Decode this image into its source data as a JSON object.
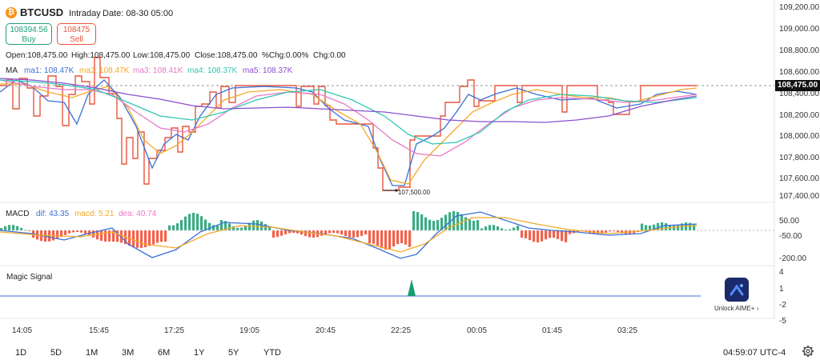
{
  "header": {
    "symbol": "BTCUSD",
    "interval": "Intraday",
    "date": "Date: 08-30 05:00",
    "buy_price": "108394.56",
    "buy_label": "Buy",
    "sell_price": "108475",
    "sell_label": "Sell"
  },
  "ohlc": {
    "open": "Open:108,475.00",
    "high": "High:108,475.00",
    "low": "Low:108,475.00",
    "close": "Close:108,475.00",
    "pct_chg": "%Chg:0.00%",
    "chg": "Chg:0.00"
  },
  "ma": {
    "label": "MA",
    "ma1": "ma1: 108.47K",
    "ma2": "ma2: 108.47K",
    "ma3": "ma3: 108.41K",
    "ma4": "ma4: 108.37K",
    "ma5": "ma5: 108.37K",
    "colors": {
      "ma1": "#3b6fd8",
      "ma2": "#f4a92a",
      "ma3": "#e879c6",
      "ma4": "#2fc7b4",
      "ma5": "#8b4fd0",
      "price": "#e8553e"
    }
  },
  "macd": {
    "label": "MACD",
    "dif": "dif: 43.35",
    "macd": "macd: 5.21",
    "dea": "dea: 40.74",
    "colors": {
      "dif": "#3b6fd8",
      "macd": "#f4a92a",
      "dea": "#e879c6",
      "pos": "#1a9e6e",
      "neg": "#f0452d"
    }
  },
  "magic_signal": {
    "label": "Magic Signal"
  },
  "price_axis": [
    "109,200.00",
    "109,000.00",
    "108,800.00",
    "108,600.00",
    "108,400.00",
    "108,200.00",
    "108,000.00",
    "107,800.00",
    "107,600.00",
    "107,400.00"
  ],
  "current_price_tag": "108,475.00",
  "low_annotation": "107,500.00",
  "macd_axis": [
    "50.00",
    "-50.00",
    "-200.00"
  ],
  "magic_axis": [
    "4",
    "1",
    "-2",
    "-5"
  ],
  "time_axis": [
    "14:05",
    "15:45",
    "17:25",
    "19:05",
    "20:45",
    "22:25",
    "00:05",
    "01:45",
    "03:25"
  ],
  "timeframes": [
    "1D",
    "5D",
    "1M",
    "3M",
    "6M",
    "1Y",
    "5Y",
    "YTD"
  ],
  "clock": "04:59:07 UTC-4",
  "aime": {
    "label": "Unlock AIME+ ›"
  }
}
